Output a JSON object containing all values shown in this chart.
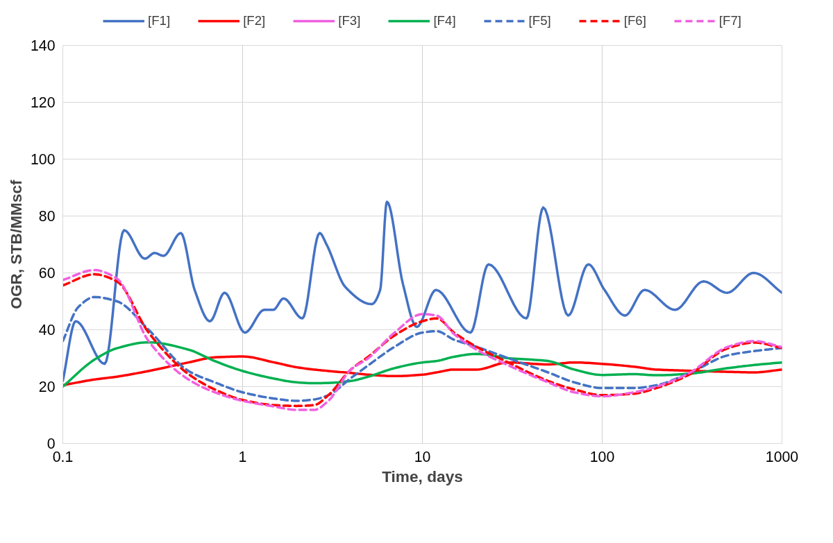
{
  "chart_data": {
    "type": "line",
    "xlabel": "Time, days",
    "ylabel": "OGR, STB/MMscf",
    "log": "x",
    "xlim": [
      0.1,
      1000
    ],
    "xticks": [
      0.1,
      1,
      10,
      100,
      1000
    ],
    "ylim": [
      0,
      140
    ],
    "yticks": [
      0,
      20,
      40,
      60,
      80,
      100,
      120,
      140
    ],
    "grid": true,
    "legend": "top",
    "series": [
      {
        "name": "[F1]",
        "color": "#4472c4",
        "line_style": "solid",
        "x": [
          0.1,
          0.118,
          0.171,
          0.219,
          0.286,
          0.324,
          0.363,
          0.453,
          0.541,
          0.658,
          0.794,
          1.03,
          1.32,
          1.48,
          1.69,
          2.15,
          2.68,
          2.93,
          3.73,
          5.22,
          5.82,
          6.35,
          7.8,
          9.31,
          11.9,
          18.5,
          23.3,
          37.9,
          47,
          64.7,
          83.7,
          103,
          134,
          172,
          254,
          366,
          495,
          695,
          1000
        ],
        "values": [
          22,
          43,
          28,
          75,
          65,
          67,
          66,
          74,
          54,
          43,
          53,
          39,
          47,
          47,
          51,
          44,
          74,
          70,
          55,
          49,
          54,
          85,
          56,
          41,
          54,
          39,
          63,
          44,
          83,
          45,
          63,
          54,
          45,
          54,
          47,
          57,
          53,
          60,
          53
        ]
      },
      {
        "name": "[F2]",
        "color": "#ff0000",
        "line_style": "solid",
        "x": [
          0.1,
          0.15,
          0.2,
          0.3,
          0.5,
          0.7,
          1,
          1.5,
          2,
          2.5,
          3,
          4,
          5,
          7,
          10,
          12,
          15,
          20,
          30,
          50,
          70,
          100,
          150,
          200,
          300,
          500,
          700,
          1000
        ],
        "values": [
          20.5,
          22.5,
          23.5,
          25.5,
          28.5,
          30.3,
          30.6,
          28.5,
          26.8,
          26,
          25.5,
          24.8,
          24.2,
          23.7,
          24.2,
          25,
          26,
          26,
          28.5,
          27.8,
          28.5,
          28,
          27,
          26,
          25.6,
          25.2,
          25,
          26
        ]
      },
      {
        "name": "[F3]",
        "color": "#f060e0",
        "line_style": "solid",
        "values": [
          null
        ]
      },
      {
        "name": "[F4]",
        "color": "#00b050",
        "line_style": "solid",
        "x": [
          0.1,
          0.15,
          0.2,
          0.3,
          0.5,
          0.7,
          1,
          1.5,
          2,
          2.5,
          3,
          4,
          5,
          7,
          10,
          12,
          15,
          20,
          30,
          50,
          70,
          100,
          150,
          200,
          300,
          500,
          700,
          1000
        ],
        "values": [
          20,
          29.5,
          33.5,
          35.6,
          33,
          29,
          25.5,
          22.8,
          21.5,
          21.2,
          21.3,
          22,
          23.5,
          26.5,
          28.5,
          29,
          30.5,
          31.5,
          30,
          29,
          26,
          24.1,
          24.4,
          24,
          24.5,
          26.5,
          27.6,
          28.5
        ]
      },
      {
        "name": "[F5]",
        "color": "#4472c4",
        "line_style": "dashed",
        "x": [
          0.1,
          0.122,
          0.15,
          0.2,
          0.3,
          0.5,
          0.7,
          1,
          1.5,
          2,
          2.5,
          3,
          4,
          5,
          7,
          10,
          12,
          15,
          20,
          30,
          50,
          70,
          100,
          150,
          200,
          300,
          500,
          700,
          1000
        ],
        "values": [
          36,
          48,
          51.5,
          50,
          40,
          25.5,
          21.5,
          18,
          15.8,
          15,
          15.5,
          17,
          23,
          27.5,
          34,
          39,
          39.5,
          36.5,
          34,
          30,
          25,
          21.5,
          19.5,
          19.5,
          20.5,
          24.5,
          31,
          32.5,
          33.6
        ]
      },
      {
        "name": "[F6]",
        "color": "#ff0000",
        "line_style": "dashed",
        "x": [
          0.1,
          0.15,
          0.2,
          0.3,
          0.5,
          0.7,
          1,
          1.5,
          2,
          2.5,
          3,
          4,
          5,
          7,
          10,
          12,
          15,
          20,
          30,
          50,
          70,
          100,
          150,
          200,
          300,
          500,
          700,
          1000
        ],
        "values": [
          55.6,
          59.5,
          57,
          39,
          24.4,
          19,
          15.3,
          13.5,
          13.2,
          13.5,
          17,
          26,
          30.5,
          38,
          43,
          44,
          39,
          34,
          28.5,
          22,
          19,
          17,
          17.5,
          19.5,
          24,
          33.5,
          35.5,
          33.6
        ]
      },
      {
        "name": "[F7]",
        "color": "#f060e0",
        "line_style": "dashed",
        "x": [
          0.1,
          0.15,
          0.2,
          0.3,
          0.5,
          0.7,
          1,
          1.5,
          2,
          2.5,
          3,
          4,
          5,
          7,
          10,
          12,
          15,
          20,
          30,
          50,
          70,
          100,
          150,
          200,
          300,
          500,
          700,
          1000
        ],
        "values": [
          57.5,
          61,
          58,
          36,
          22.5,
          18,
          15,
          13,
          11.8,
          11.8,
          15,
          26,
          30,
          39,
          45.5,
          45,
          38.5,
          33,
          27.5,
          21.5,
          18,
          16.6,
          18,
          20,
          24.5,
          34,
          36,
          33.9
        ]
      }
    ]
  }
}
